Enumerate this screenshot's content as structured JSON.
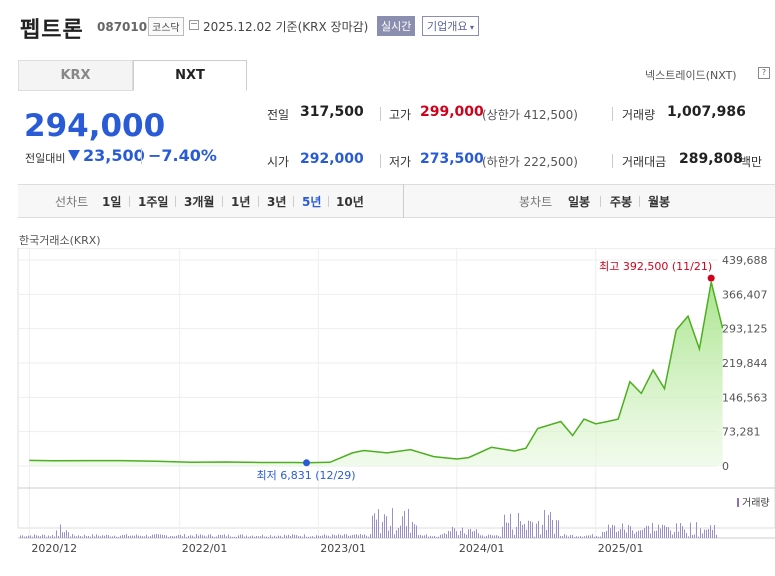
{
  "header": {
    "name": "펩트론",
    "code": "087010",
    "market": "코스닥",
    "date_basis": "2025.12.02  기준(KRX 장마감)",
    "realtime": "실시간",
    "company_info": "기업개요"
  },
  "tabs": [
    {
      "label": "KRX"
    },
    {
      "label": "NXT"
    }
  ],
  "nxt_link": "넥스트레이드(NXT)",
  "price": {
    "current": "294,000",
    "change_label": "전일대비",
    "change": "23,500",
    "change_pct": "−7.40%"
  },
  "stats": {
    "prev_label": "전일",
    "prev": "317,500",
    "high_label": "고가",
    "high": "299,000",
    "upper_limit": "(상한가 412,500)",
    "volume_label": "거래량",
    "volume": "1,007,986",
    "open_label": "시가",
    "open": "292,000",
    "low_label": "저가",
    "low": "273,500",
    "lower_limit": "(하한가 222,500)",
    "trade_value_label": "거래대금",
    "trade_value": "289,808",
    "trade_value_unit": "백만"
  },
  "period_bar": {
    "line_chart_label": "선차트",
    "periods": [
      "1일",
      "1주일",
      "3개월",
      "1년",
      "3년",
      "5년",
      "10년"
    ],
    "selected": "5년",
    "candle_label": "봉차트",
    "candles": [
      "일봉",
      "주봉",
      "월봉"
    ]
  },
  "exchange_label": "한국거래소(KRX)",
  "colors": {
    "accent": "#2a5bd7",
    "red": "#d0021b",
    "line": "#4caf1f"
  },
  "chart_data": {
    "type": "area",
    "ylim": [
      0,
      439688
    ],
    "y_ticks": [
      "439,688",
      "366,407",
      "293,125",
      "219,844",
      "146,563",
      "73,281",
      "0"
    ],
    "x_ticks": [
      "2020/12",
      "2022/01",
      "2023/01",
      "2024/01",
      "2025/01"
    ],
    "high_annotation": "최고 392,500 (11/21)",
    "low_annotation": "최저 6,831 (12/29)",
    "volume_label": "거래량",
    "series": [
      {
        "x": [
          "2020-12",
          "2021-02",
          "2021-05",
          "2021-08",
          "2021-11",
          "2022-02",
          "2022-05",
          "2022-08",
          "2022-11",
          "2022-12",
          "2023-02",
          "2023-04",
          "2023-05",
          "2023-07",
          "2023-09",
          "2023-11",
          "2024-01",
          "2024-02",
          "2024-04",
          "2024-06",
          "2024-07",
          "2024-08",
          "2024-10",
          "2024-11",
          "2024-12",
          "2025-01",
          "2025-02",
          "2025-03",
          "2025-04",
          "2025-05",
          "2025-06",
          "2025-07",
          "2025-08",
          "2025-09",
          "2025-10",
          "2025-11",
          "2025-12"
        ],
        "values": [
          12000,
          11000,
          11500,
          11500,
          10000,
          8000,
          8500,
          7500,
          7500,
          6831,
          8000,
          28000,
          33000,
          28000,
          35000,
          20000,
          15000,
          18000,
          40000,
          32000,
          38000,
          80000,
          95000,
          65000,
          100000,
          90000,
          95000,
          100000,
          180000,
          155000,
          205000,
          165000,
          290000,
          320000,
          250000,
          392500,
          294000
        ]
      }
    ]
  }
}
